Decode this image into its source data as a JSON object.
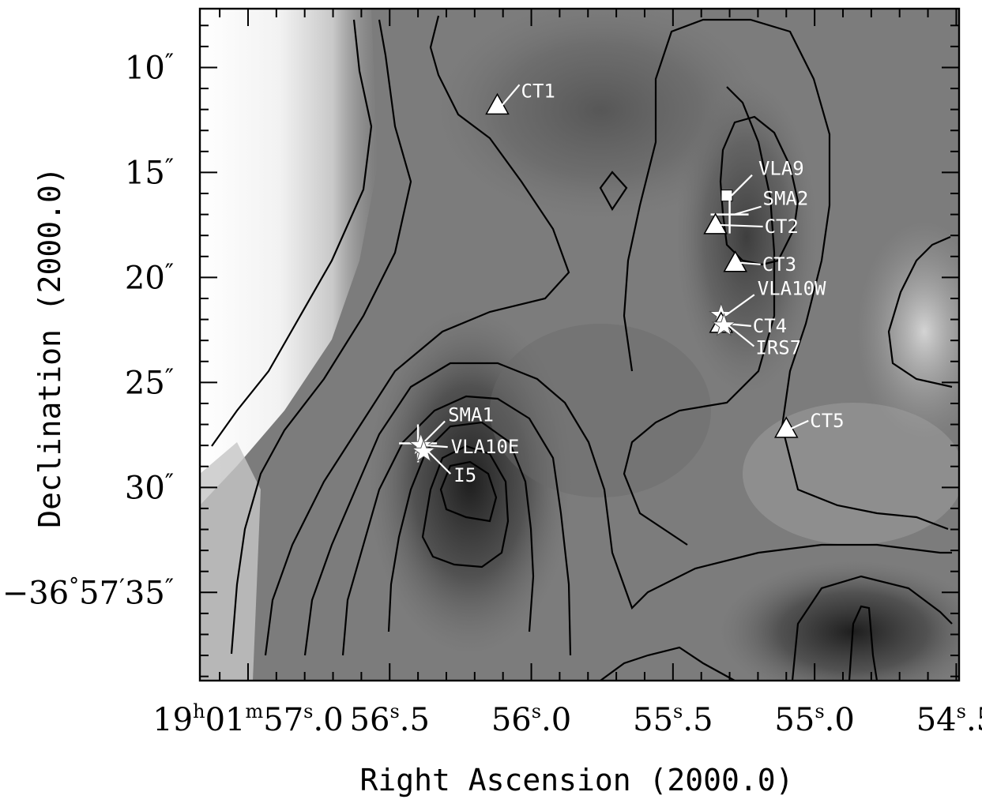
{
  "chart_data": {
    "type": "heatmap",
    "title": "",
    "xlabel": "Right Ascension (2000.0)",
    "ylabel": "Declination (2000.0)",
    "colormap": "greyscale, darker = brighter emission",
    "overlay": "black contours",
    "xlim_ra_seconds": [
      57.17,
      54.49
    ],
    "ylim_dec_arcsec": [
      7.2,
      39.2
    ],
    "x_ticks": [
      {
        "value": 57.0,
        "h": "19",
        "m": "01",
        "s": "57",
        "f": "0"
      },
      {
        "value": 56.5,
        "h": "",
        "m": "",
        "s": "56",
        "f": "5"
      },
      {
        "value": 56.0,
        "h": "",
        "m": "",
        "s": "56",
        "f": "0"
      },
      {
        "value": 55.5,
        "h": "",
        "m": "",
        "s": "55",
        "f": "5"
      },
      {
        "value": 55.0,
        "h": "",
        "m": "",
        "s": "55",
        "f": "0"
      },
      {
        "value": 54.5,
        "h": "",
        "m": "",
        "s": "54",
        "f": "5"
      }
    ],
    "y_ticks": [
      {
        "value": 10,
        "deg": "",
        "amin": "",
        "asec": "10"
      },
      {
        "value": 15,
        "deg": "",
        "amin": "",
        "asec": "15"
      },
      {
        "value": 20,
        "deg": "",
        "amin": "",
        "asec": "20"
      },
      {
        "value": 25,
        "deg": "",
        "amin": "",
        "asec": "25"
      },
      {
        "value": 30,
        "deg": "",
        "amin": "",
        "asec": "30"
      },
      {
        "value": 35,
        "deg": "−36",
        "amin": "57",
        "asec": "35"
      }
    ],
    "sources": [
      {
        "name": "CT1",
        "symbol": "triangle",
        "ra": 56.12,
        "dec": 11.8
      },
      {
        "name": "VLA9",
        "symbol": "square",
        "ra": 55.31,
        "dec": 16.1
      },
      {
        "name": "SMA2",
        "symbol": "cross",
        "ra": 55.3,
        "dec": 17.0
      },
      {
        "name": "CT2",
        "symbol": "triangle",
        "ra": 55.35,
        "dec": 17.5
      },
      {
        "name": "CT3",
        "symbol": "triangle",
        "ra": 55.28,
        "dec": 19.3
      },
      {
        "name": "VLA10W",
        "symbol": "star",
        "ra": 55.33,
        "dec": 21.8
      },
      {
        "name": "CT4",
        "symbol": "triangle",
        "ra": 55.33,
        "dec": 22.2
      },
      {
        "name": "IRS7",
        "symbol": "star",
        "ra": 55.32,
        "dec": 22.3
      },
      {
        "name": "CT5",
        "symbol": "triangle",
        "ra": 55.1,
        "dec": 27.2
      },
      {
        "name": "SMA1",
        "symbol": "cross",
        "ra": 56.4,
        "dec": 27.9
      },
      {
        "name": "VLA10E",
        "symbol": "star",
        "ra": 56.39,
        "dec": 28.0
      },
      {
        "name": "I5",
        "symbol": "star",
        "ra": 56.38,
        "dec": 28.3
      }
    ]
  }
}
